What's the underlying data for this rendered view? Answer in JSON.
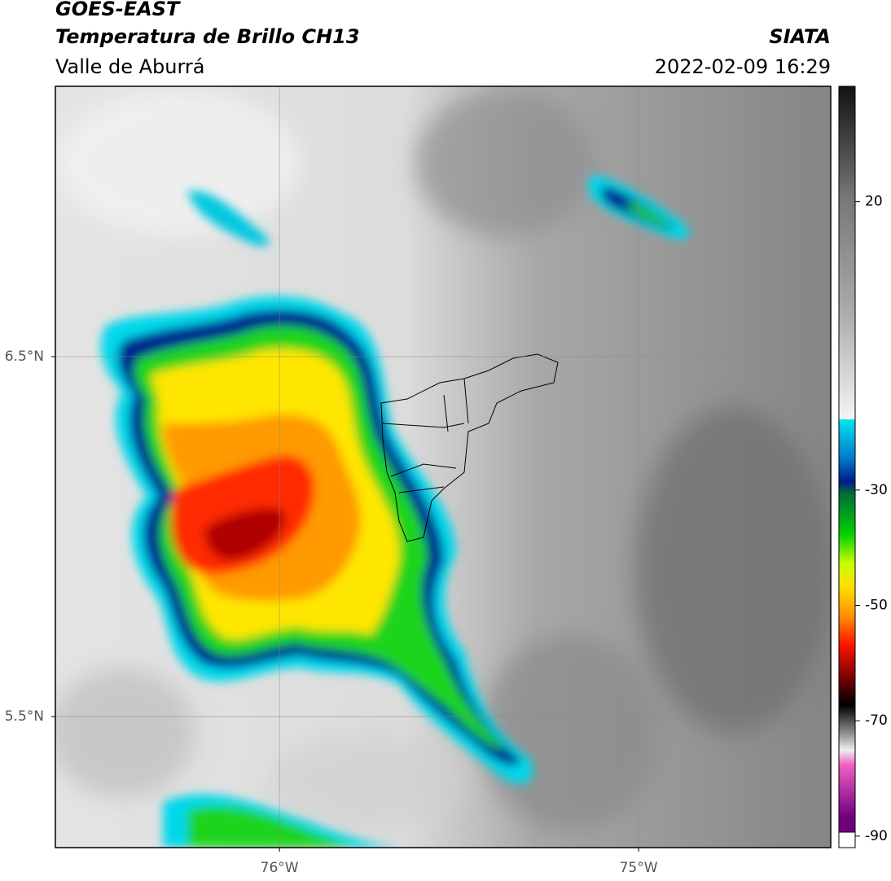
{
  "header": {
    "title": "GOES-EAST",
    "subtitle": "Temperatura de Brillo CH13",
    "region": "Valle de Aburrá",
    "source": "SIATA",
    "datetime": "2022-02-09 16:29"
  },
  "map": {
    "xlim": [
      -76.624,
      -74.465
    ],
    "ylim": [
      5.136,
      7.251
    ],
    "xticks": [
      {
        "value": -76,
        "label": "76°W"
      },
      {
        "value": -75,
        "label": "75°W"
      }
    ],
    "yticks": [
      {
        "value": 6.5,
        "label": "6.5°N"
      },
      {
        "value": 5.5,
        "label": "5.5°N"
      }
    ],
    "grid": true
  },
  "colorbar": {
    "lim": [
      -92,
      40
    ],
    "ticks": [
      20,
      -30,
      -50,
      -70,
      -90
    ]
  }
}
